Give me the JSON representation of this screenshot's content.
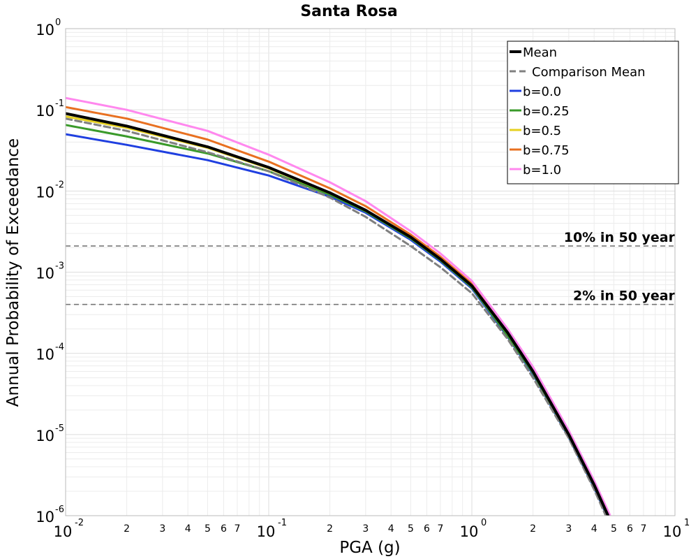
{
  "chart_data": {
    "type": "line",
    "title": "Santa Rosa",
    "xlabel": "PGA (g)",
    "ylabel": "Annual Probability of Exceedance",
    "xscale": "log",
    "yscale": "log",
    "xlim": [
      0.01,
      10
    ],
    "ylim": [
      1e-06,
      1
    ],
    "grid": true,
    "legend_position": "top-right",
    "x_major_ticks": [
      {
        "base": "10",
        "exp": "-2"
      },
      {
        "base": "10",
        "exp": "-1"
      },
      {
        "base": "10",
        "exp": "0"
      },
      {
        "base": "10",
        "exp": "1"
      }
    ],
    "y_major_ticks": [
      {
        "base": "10",
        "exp": "0"
      },
      {
        "base": "10",
        "exp": "-1"
      },
      {
        "base": "10",
        "exp": "-2"
      },
      {
        "base": "10",
        "exp": "-3"
      },
      {
        "base": "10",
        "exp": "-4"
      },
      {
        "base": "10",
        "exp": "-5"
      },
      {
        "base": "10",
        "exp": "-6"
      }
    ],
    "x_minor_tick_labels": [
      "2",
      "3",
      "4",
      "5",
      "6",
      "7"
    ],
    "reference_lines": [
      {
        "label": "10% in 50 year",
        "y": 0.0021
      },
      {
        "label": "2% in 50 year",
        "y": 0.0004
      }
    ],
    "series": [
      {
        "name": "Mean",
        "color": "#000000",
        "style": "solid",
        "x": [
          0.01,
          0.02,
          0.05,
          0.1,
          0.2,
          0.3,
          0.5,
          0.7,
          1.0,
          1.5,
          2.0,
          3.0,
          4.0,
          5.0
        ],
        "y": [
          0.09,
          0.063,
          0.035,
          0.0195,
          0.0095,
          0.0058,
          0.0027,
          0.00145,
          0.00068,
          0.00018,
          6e-05,
          1e-05,
          2.4e-06,
          7e-07
        ]
      },
      {
        "name": "Comparison Mean",
        "color": "#808080",
        "style": "dashed",
        "x": [
          0.01,
          0.02,
          0.05,
          0.1,
          0.2,
          0.3,
          0.5,
          0.7,
          1.0,
          1.5,
          2.0,
          3.0,
          4.0,
          5.0
        ],
        "y": [
          0.078,
          0.055,
          0.03,
          0.0175,
          0.0083,
          0.0048,
          0.0021,
          0.00115,
          0.00055,
          0.00015,
          5e-05,
          9e-06,
          2.1e-06,
          6e-07
        ]
      },
      {
        "name": "b=0.0",
        "color": "#1f3fe0",
        "style": "solid",
        "x": [
          0.01,
          0.02,
          0.05,
          0.1,
          0.2,
          0.3,
          0.5,
          0.7,
          1.0,
          1.5,
          2.0,
          3.0,
          4.0,
          5.0
        ],
        "y": [
          0.05,
          0.037,
          0.024,
          0.0155,
          0.0085,
          0.0054,
          0.0025,
          0.00135,
          0.00063,
          0.00016,
          5.5e-05,
          9.2e-06,
          2.2e-06,
          6.5e-07
        ]
      },
      {
        "name": "b=0.25",
        "color": "#3a9a2a",
        "style": "solid",
        "x": [
          0.01,
          0.02,
          0.05,
          0.1,
          0.2,
          0.3,
          0.5,
          0.7,
          1.0,
          1.5,
          2.0,
          3.0,
          4.0,
          5.0
        ],
        "y": [
          0.065,
          0.047,
          0.029,
          0.0175,
          0.009,
          0.0056,
          0.0026,
          0.0014,
          0.00065,
          0.000165,
          5.7e-05,
          9.5e-06,
          2.3e-06,
          6.7e-07
        ]
      },
      {
        "name": "b=0.5",
        "color": "#e6d020",
        "style": "solid",
        "x": [
          0.01,
          0.02,
          0.05,
          0.1,
          0.2,
          0.3,
          0.5,
          0.7,
          1.0,
          1.5,
          2.0,
          3.0,
          4.0,
          5.0
        ],
        "y": [
          0.083,
          0.06,
          0.034,
          0.019,
          0.0094,
          0.0058,
          0.0027,
          0.00145,
          0.00068,
          0.00018,
          6e-05,
          1e-05,
          2.4e-06,
          7e-07
        ]
      },
      {
        "name": "b=0.75",
        "color": "#e87020",
        "style": "solid",
        "x": [
          0.01,
          0.02,
          0.05,
          0.1,
          0.2,
          0.3,
          0.5,
          0.7,
          1.0,
          1.5,
          2.0,
          3.0,
          4.0,
          5.0
        ],
        "y": [
          0.108,
          0.078,
          0.043,
          0.023,
          0.0108,
          0.0065,
          0.0029,
          0.00155,
          0.00072,
          0.00019,
          6.4e-05,
          1.07e-05,
          2.6e-06,
          7.5e-07
        ]
      },
      {
        "name": "b=1.0",
        "color": "#ff88ee",
        "style": "solid",
        "x": [
          0.01,
          0.02,
          0.05,
          0.1,
          0.2,
          0.3,
          0.5,
          0.7,
          1.0,
          1.5,
          2.0,
          3.0,
          4.0,
          5.0
        ],
        "y": [
          0.14,
          0.1,
          0.055,
          0.028,
          0.0128,
          0.0075,
          0.0032,
          0.0017,
          0.00078,
          0.0002,
          6.8e-05,
          1.12e-05,
          2.7e-06,
          8e-07
        ]
      }
    ]
  }
}
